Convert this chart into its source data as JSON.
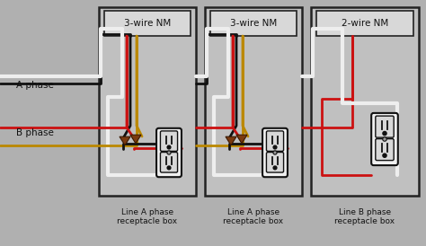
{
  "bg": "#b0b0b0",
  "box_fill": "#c0c0c0",
  "box_edge": "#222222",
  "nm_fill": "#d8d8d8",
  "blk": "#111111",
  "red": "#cc1111",
  "wht": "#eeeeee",
  "gld": "#bb8800",
  "con": "#7a3a10",
  "outlet_fill": "#f0f0f0",
  "outlet_face": "#d8d8d8",
  "lbl_clr": "#111111",
  "cable_labels": [
    "3-wire NM",
    "3-wire NM",
    "2-wire NM"
  ],
  "box_labels": [
    "Line A phase\nreceptacle box",
    "Line A phase\nreceptacle box",
    "Line B phase\nreceptacle box"
  ],
  "phase_a": "A phase",
  "phase_b": "B phase",
  "figsize": [
    4.74,
    2.74
  ],
  "dpi": 100
}
